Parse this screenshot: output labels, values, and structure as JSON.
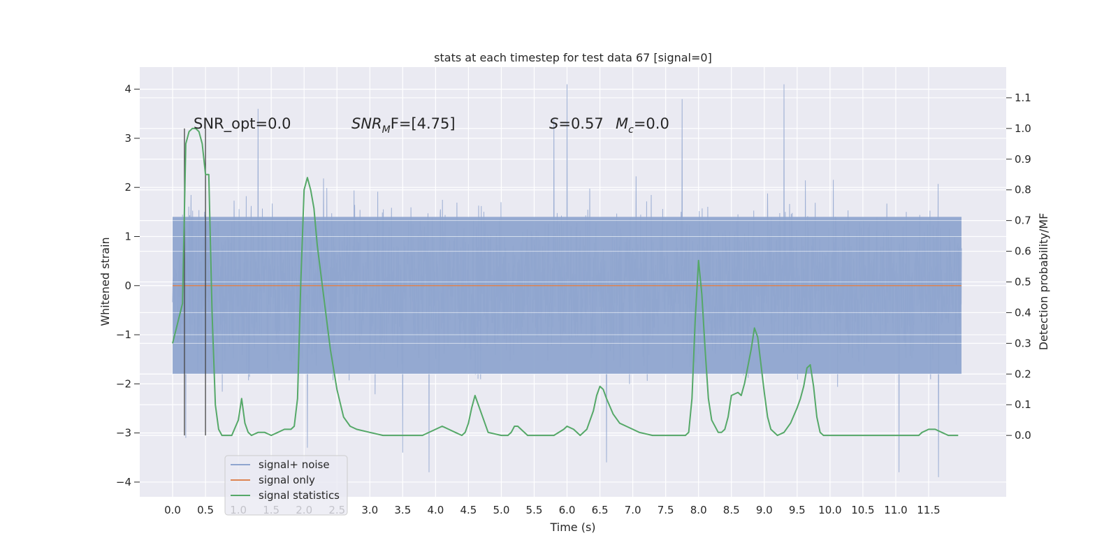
{
  "colors": {
    "axes_bg": "#eaeaf2",
    "grid": "#ffffff",
    "noise": "#8fa5cf",
    "signal_only": "#dd8452",
    "statistics": "#55a868",
    "markers": "#444444",
    "text": "#262626"
  },
  "chart_data": {
    "type": "line",
    "title": "stats at each timestep for test data 67 [signal=0]",
    "xlabel": "Time (s)",
    "ylabel": "Whitened strain",
    "ylabel_right": "Detection probability/MF",
    "xlim": [
      -0.5,
      12.68
    ],
    "ylim": [
      -4.3,
      4.45
    ],
    "ylim_right": [
      -0.2,
      1.2
    ],
    "x_ticks": [
      0.0,
      0.5,
      1.0,
      1.5,
      2.0,
      2.5,
      3.0,
      3.5,
      4.0,
      4.5,
      5.0,
      5.5,
      6.0,
      6.5,
      7.0,
      7.5,
      8.0,
      8.5,
      9.0,
      9.5,
      10.0,
      10.5,
      11.0,
      11.5
    ],
    "x_tick_labels": [
      "0.0",
      "0.5",
      "1.0",
      "1.5",
      "2.0",
      "2.5",
      "3.0",
      "3.5",
      "4.0",
      "4.5",
      "5.0",
      "5.5",
      "6.0",
      "6.5",
      "7.0",
      "7.5",
      "8.0",
      "8.5",
      "9.0",
      "9.5",
      "10.0",
      "10.5",
      "11.0",
      "11.5"
    ],
    "y_ticks": [
      -4,
      -3,
      -2,
      -1,
      0,
      1,
      2,
      3,
      4
    ],
    "y_tick_labels": [
      "−4",
      "−3",
      "−2",
      "−1",
      "0",
      "1",
      "2",
      "3",
      "4"
    ],
    "y_ticks_right": [
      0.0,
      0.1,
      0.2,
      0.3,
      0.4,
      0.5,
      0.6,
      0.7,
      0.8,
      0.9,
      1.0,
      1.1
    ],
    "y_tick_labels_right": [
      "0.0",
      "0.1",
      "0.2",
      "0.3",
      "0.4",
      "0.5",
      "0.6",
      "0.7",
      "0.8",
      "0.9",
      "1.0",
      "1.1"
    ],
    "grid": true,
    "legend_position": "lower-left",
    "annotations": {
      "snr_opt": "SNR_opt=0.0",
      "snr_mf_italic": "SNR",
      "snr_mf_sub": "M",
      "snr_mf_tail": "F=[4.75]",
      "s_stat_italic": "S",
      "s_stat_tail": "=0.57",
      "mc_italic": "M",
      "mc_sub": "c",
      "mc_tail": "=0.0"
    },
    "legend": [
      {
        "label": "signal+ noise",
        "color": "#8fa5cf"
      },
      {
        "label": "signal only",
        "color": "#dd8452"
      },
      {
        "label": "signal statistics",
        "color": "#55a868"
      }
    ],
    "series": [
      {
        "name": "signal+ noise",
        "axis": "left",
        "kind": "noise_band",
        "x_range": [
          0.0,
          12.0
        ],
        "band_limits": [
          -1.8,
          1.4
        ],
        "typical_extremes": [
          -3.0,
          2.8
        ],
        "peaks": [
          {
            "x": 0.2,
            "y": -3.1
          },
          {
            "x": 1.3,
            "y": 3.6
          },
          {
            "x": 2.05,
            "y": -3.3
          },
          {
            "x": 3.5,
            "y": -3.4
          },
          {
            "x": 3.9,
            "y": -3.8
          },
          {
            "x": 5.8,
            "y": 3.4
          },
          {
            "x": 6.0,
            "y": 4.1
          },
          {
            "x": 6.6,
            "y": -3.6
          },
          {
            "x": 7.75,
            "y": 3.8
          },
          {
            "x": 9.3,
            "y": 4.1
          },
          {
            "x": 11.05,
            "y": -3.8
          },
          {
            "x": 11.65,
            "y": -3.9
          }
        ]
      },
      {
        "name": "signal only",
        "axis": "left",
        "x": [
          0.0,
          12.0
        ],
        "y": [
          0.0,
          0.0
        ]
      },
      {
        "name": "signal statistics",
        "axis": "right",
        "x": [
          0.0,
          0.15,
          0.2,
          0.25,
          0.3,
          0.35,
          0.4,
          0.45,
          0.5,
          0.55,
          0.6,
          0.65,
          0.7,
          0.75,
          0.8,
          0.9,
          1.0,
          1.05,
          1.1,
          1.15,
          1.2,
          1.3,
          1.4,
          1.5,
          1.6,
          1.7,
          1.8,
          1.85,
          1.9,
          1.95,
          2.0,
          2.05,
          2.1,
          2.15,
          2.2,
          2.3,
          2.4,
          2.5,
          2.6,
          2.7,
          2.8,
          3.0,
          3.2,
          3.4,
          3.6,
          3.8,
          4.0,
          4.1,
          4.2,
          4.3,
          4.4,
          4.45,
          4.5,
          4.55,
          4.6,
          4.7,
          4.8,
          5.0,
          5.1,
          5.15,
          5.2,
          5.25,
          5.3,
          5.4,
          5.5,
          5.6,
          5.8,
          5.95,
          6.0,
          6.1,
          6.2,
          6.3,
          6.4,
          6.45,
          6.5,
          6.55,
          6.6,
          6.7,
          6.8,
          6.9,
          7.0,
          7.1,
          7.3,
          7.5,
          7.6,
          7.7,
          7.8,
          7.85,
          7.9,
          7.95,
          8.0,
          8.05,
          8.1,
          8.15,
          8.2,
          8.3,
          8.35,
          8.4,
          8.45,
          8.5,
          8.6,
          8.65,
          8.7,
          8.8,
          8.85,
          8.9,
          8.95,
          9.0,
          9.05,
          9.1,
          9.2,
          9.3,
          9.4,
          9.5,
          9.55,
          9.6,
          9.65,
          9.7,
          9.75,
          9.8,
          9.85,
          9.9,
          10.0,
          10.2,
          10.5,
          11.0,
          11.3,
          11.35,
          11.4,
          11.5,
          11.6,
          11.7,
          11.8,
          11.9,
          11.95
        ],
        "y": [
          0.3,
          0.43,
          0.95,
          0.99,
          1.0,
          1.0,
          0.99,
          0.95,
          0.85,
          0.85,
          0.4,
          0.1,
          0.02,
          0.0,
          0.0,
          0.0,
          0.05,
          0.12,
          0.04,
          0.01,
          0.0,
          0.01,
          0.01,
          0.0,
          0.01,
          0.02,
          0.02,
          0.03,
          0.12,
          0.5,
          0.8,
          0.84,
          0.8,
          0.74,
          0.62,
          0.45,
          0.28,
          0.15,
          0.06,
          0.03,
          0.02,
          0.01,
          0.0,
          0.0,
          0.0,
          0.0,
          0.02,
          0.03,
          0.02,
          0.01,
          0.0,
          0.01,
          0.04,
          0.09,
          0.13,
          0.07,
          0.01,
          0.0,
          0.0,
          0.01,
          0.03,
          0.03,
          0.02,
          0.0,
          0.0,
          0.0,
          0.0,
          0.02,
          0.03,
          0.02,
          0.0,
          0.02,
          0.08,
          0.13,
          0.16,
          0.15,
          0.12,
          0.07,
          0.04,
          0.03,
          0.02,
          0.01,
          0.0,
          0.0,
          0.0,
          0.0,
          0.0,
          0.01,
          0.12,
          0.38,
          0.57,
          0.46,
          0.28,
          0.12,
          0.05,
          0.01,
          0.01,
          0.02,
          0.06,
          0.13,
          0.14,
          0.13,
          0.17,
          0.28,
          0.35,
          0.32,
          0.23,
          0.14,
          0.06,
          0.02,
          0.0,
          0.01,
          0.04,
          0.09,
          0.12,
          0.16,
          0.22,
          0.23,
          0.16,
          0.06,
          0.01,
          0.0,
          0.0,
          0.0,
          0.0,
          0.0,
          0.0,
          0.0,
          0.01,
          0.02,
          0.02,
          0.01,
          0.0,
          0.0,
          0.0
        ],
        "vertical_markers_x": [
          0.18,
          0.5
        ]
      }
    ]
  }
}
